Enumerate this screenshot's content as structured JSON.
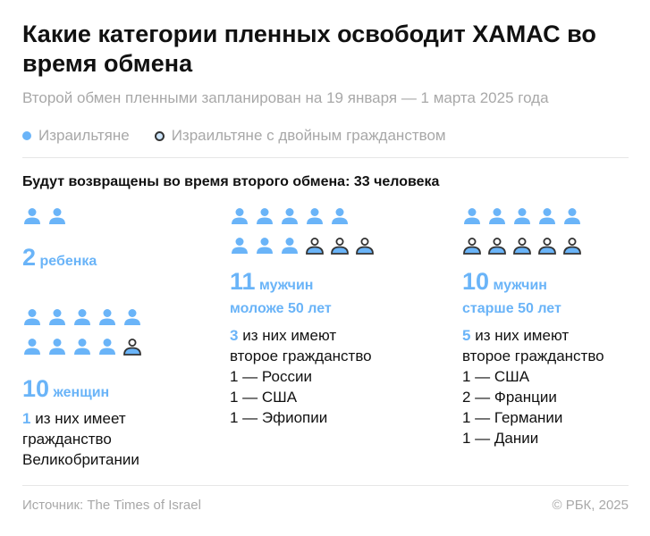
{
  "title": "Какие категории пленных освободит ХАМАС во время обмена",
  "subtitle": "Второй обмен пленными запланирован на 19 января — 1 марта 2025 года",
  "legend": [
    {
      "label": "Израильтяне",
      "color": "#6ab4f8"
    },
    {
      "label": "Израильтяне с двойным гражданством",
      "color": "#cfe6fb",
      "outline": "#333333"
    }
  ],
  "lead": "Будут возвращены во время второго обмена: 33 человека",
  "groups": {
    "children": {
      "total": 2,
      "dual": 0,
      "num": "2",
      "word": "ребенка"
    },
    "women": {
      "total": 10,
      "dual": 1,
      "num": "10",
      "word": "женщин",
      "note_num": "1",
      "note_rest": " из них имеет",
      "lines": [
        "гражданство",
        "Великобритании"
      ]
    },
    "men_young": {
      "total": 11,
      "dual": 3,
      "num": "11",
      "word": "мужчин",
      "word2": "моложе 50 лет",
      "note_num": "3",
      "note_rest": " из них имеют",
      "lines": [
        "второе гражданство",
        "1 — России",
        "1 — США",
        "1 — Эфиопии"
      ]
    },
    "men_old": {
      "total": 10,
      "dual": 5,
      "num": "10",
      "word": "мужчин",
      "word2": "старше 50 лет",
      "note_num": "5",
      "note_rest": " из них имеют",
      "lines": [
        "второе гражданство",
        "1 — США",
        "2 — Франции",
        "1 — Германии",
        "1 — Дании"
      ]
    }
  },
  "footer": {
    "source": "Источник: The Times of Israel",
    "copyright": "© РБК, 2025"
  },
  "colors": {
    "accent": "#6ab4f8",
    "outline": "#333333"
  }
}
